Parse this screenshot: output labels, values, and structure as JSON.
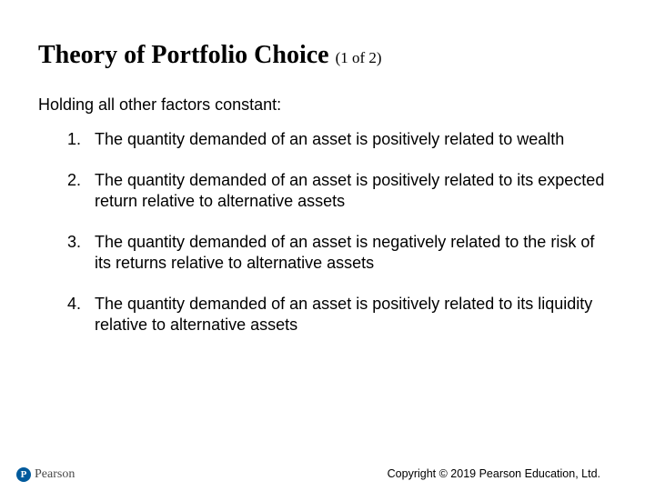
{
  "title": {
    "main": "Theory of Portfolio Choice",
    "sub": "(1 of 2)"
  },
  "intro": "Holding all other factors constant:",
  "items": [
    "The quantity demanded of an asset is positively related to wealth",
    "The quantity demanded of an asset is positively related to its expected return relative to alternative assets",
    "The quantity demanded of an asset is negatively related to the risk of its returns relative to alternative assets",
    "The quantity demanded of an asset is positively related to its liquidity relative to alternative assets"
  ],
  "brand": {
    "logo_letter": "P",
    "name": "Pearson",
    "logo_color": "#005a9c"
  },
  "copyright": "Copyright © 2019 Pearson Education, Ltd."
}
